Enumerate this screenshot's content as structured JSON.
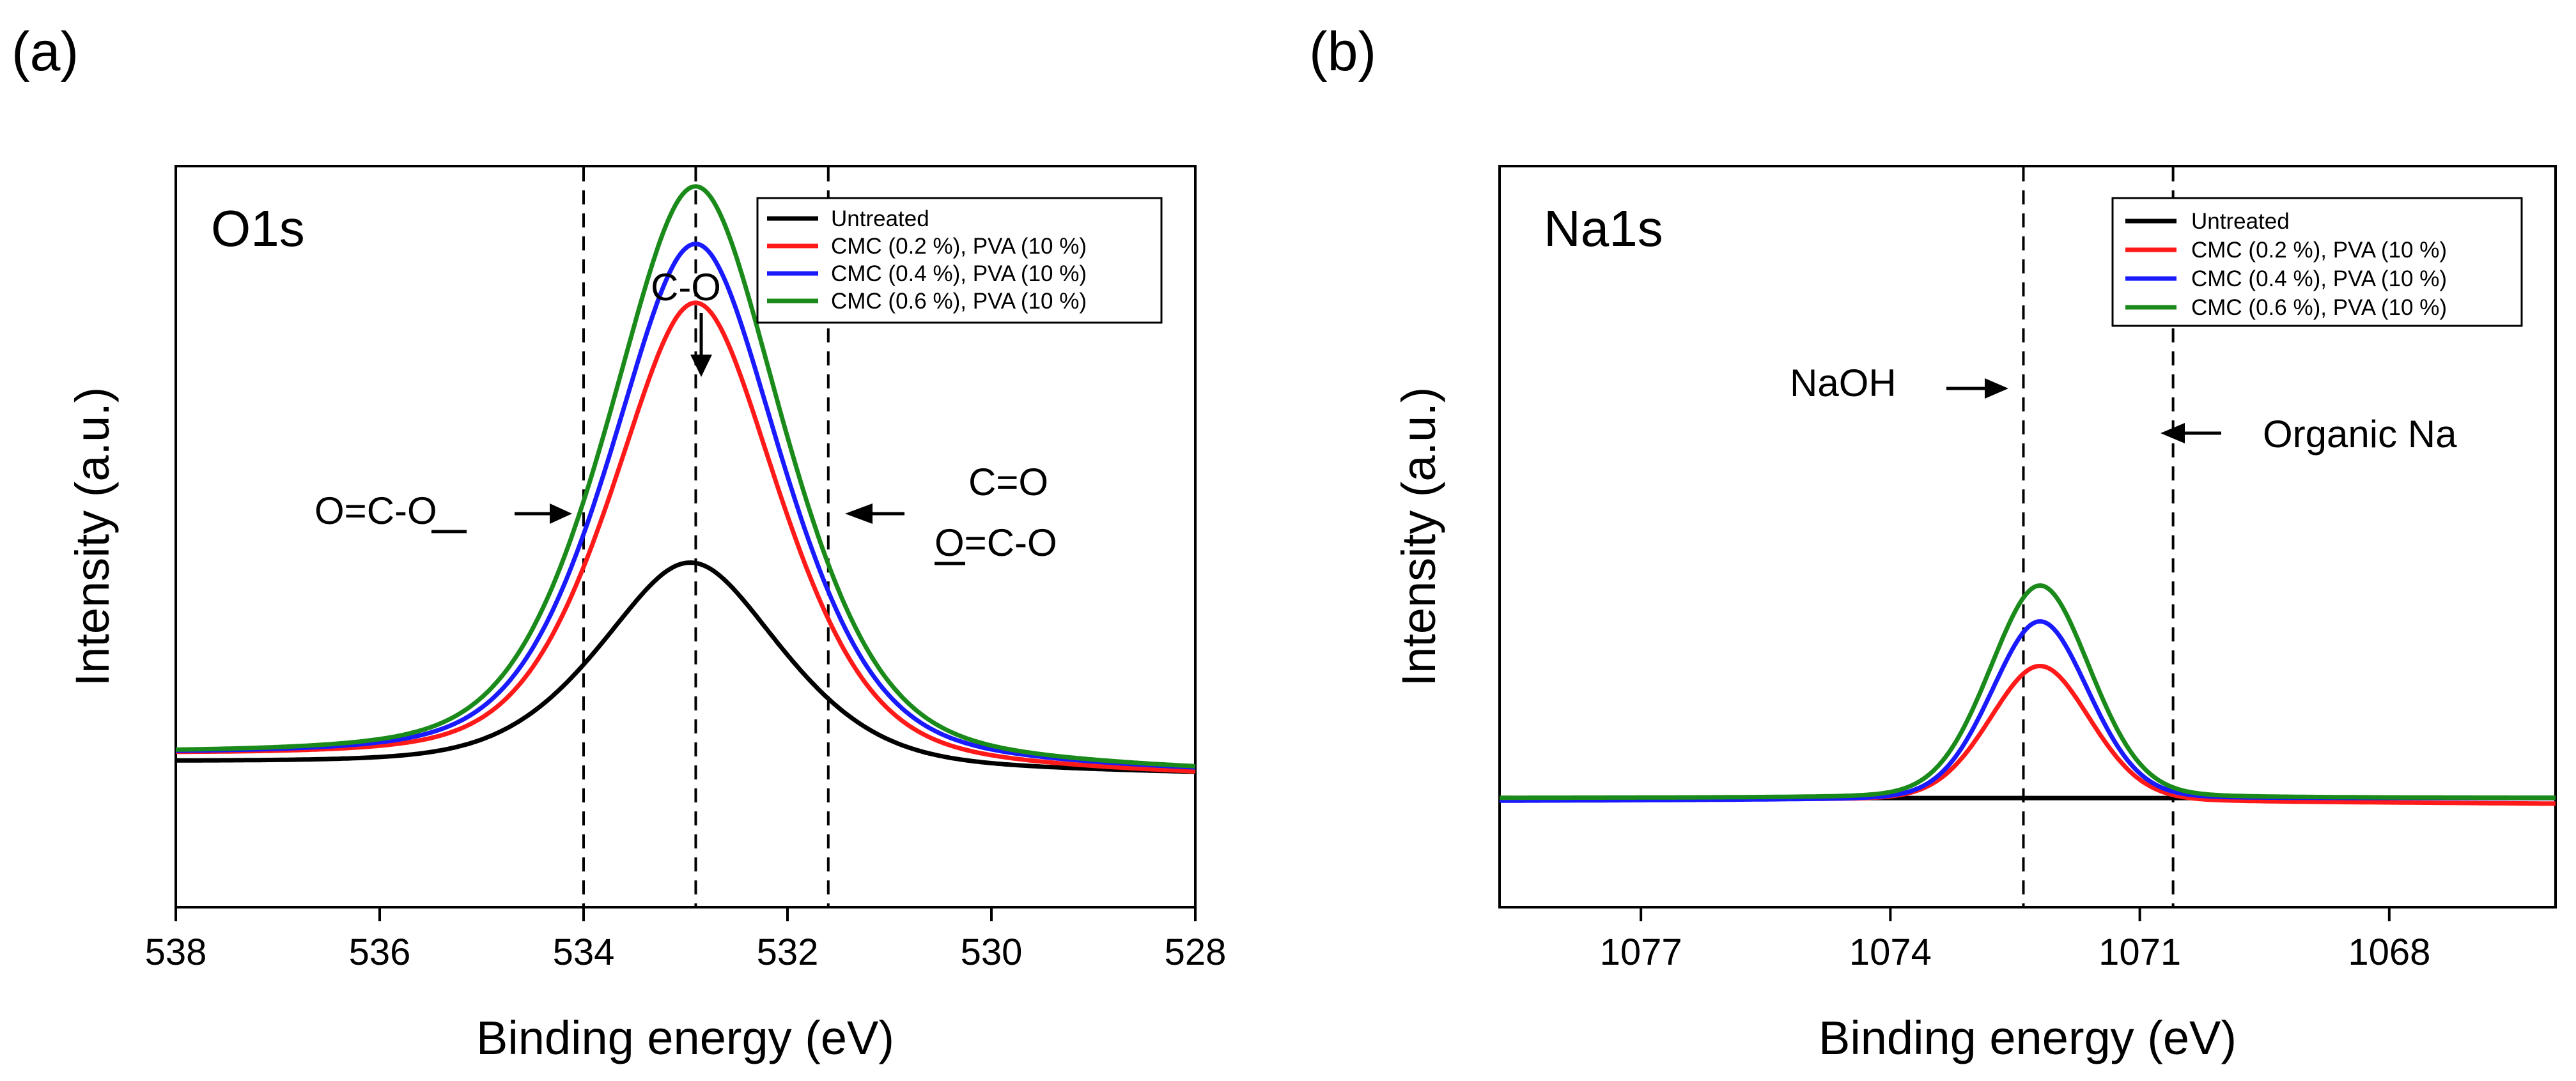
{
  "figure": {
    "panels": [
      {
        "panel_label": "(a)",
        "title": "O1s",
        "legend_title_hidden": false,
        "annotations": {
          "peak_label": "C-O",
          "left_label": "O=C-O",
          "right_label_1": "C=O",
          "right_label_2": "O=C-O"
        }
      },
      {
        "panel_label": "(b)",
        "title": "Na1s",
        "annotations": {
          "left_label": "NaOH",
          "right_label": "Organic Na"
        }
      }
    ]
  },
  "chart_data": [
    {
      "type": "line",
      "title": "O1s",
      "xlabel": "Binding energy (eV)",
      "ylabel": "Intensity (a.u.)",
      "xlim": [
        538,
        528
      ],
      "ylim": [
        -0.48,
        2.1
      ],
      "x_ticks": [
        538,
        536,
        534,
        532,
        530,
        528
      ],
      "x_tick_labels": [
        "538",
        "536",
        "534",
        "532",
        "530",
        "528"
      ],
      "vlines": [
        534.0,
        532.9,
        531.6
      ],
      "legend": {
        "position": "top-right",
        "entries": [
          "Untreated",
          "CMC (0.2 %), PVA (10 %)",
          "CMC (0.4 %), PVA (10 %)",
          "CMC (0.6 %), PVA (10 %)"
        ]
      },
      "series": [
        {
          "name": "Untreated",
          "color": "#000000",
          "peak_x": 532.95,
          "peak_y": 0.72,
          "width": 0.95,
          "baseline_left": 0.02,
          "baseline_right": -0.02
        },
        {
          "name": "CMC (0.2 %), PVA (10 %)",
          "color": "#ff1a1a",
          "peak_x": 532.9,
          "peak_y": 1.62,
          "width": 0.88,
          "baseline_left": 0.04,
          "baseline_right": -0.03
        },
        {
          "name": "CMC (0.4 %), PVA (10 %)",
          "color": "#1a1aff",
          "peak_x": 532.9,
          "peak_y": 1.82,
          "width": 0.9,
          "baseline_left": 0.04,
          "baseline_right": -0.02
        },
        {
          "name": "CMC (0.6 %), PVA (10 %)",
          "color": "#1a8a1a",
          "peak_x": 532.9,
          "peak_y": 2.02,
          "width": 0.92,
          "baseline_left": 0.04,
          "baseline_right": -0.02
        }
      ]
    },
    {
      "type": "line",
      "title": "Na1s",
      "xlabel": "Binding energy (eV)",
      "ylabel": "Intensity (a.u.)",
      "xlim": [
        1078.7,
        1066.0
      ],
      "ylim": [
        -0.38,
        2.2
      ],
      "x_ticks": [
        1077,
        1074,
        1071,
        1068
      ],
      "x_tick_labels": [
        "1077",
        "1074",
        "1071",
        "1068"
      ],
      "vlines": [
        1072.4,
        1070.6
      ],
      "legend": {
        "position": "top-right",
        "entries": [
          "Untreated",
          "CMC (0.2 %), PVA (10 %)",
          "CMC (0.4 %), PVA (10 %)",
          "CMC (0.6 %), PVA (10 %)"
        ]
      },
      "series": [
        {
          "name": "Untreated",
          "color": "#000000",
          "peak_x": 1072.2,
          "peak_y": 0.0,
          "width": 1.0,
          "baseline_left": 0.0,
          "baseline_right": 0.0
        },
        {
          "name": "CMC (0.2 %), PVA (10 %)",
          "color": "#ff1a1a",
          "peak_x": 1072.2,
          "peak_y": 0.47,
          "width": 0.62,
          "baseline_left": 0.0,
          "baseline_right": -0.02
        },
        {
          "name": "CMC (0.4 %), PVA (10 %)",
          "color": "#1a1aff",
          "peak_x": 1072.2,
          "peak_y": 0.62,
          "width": 0.6,
          "baseline_left": -0.01,
          "baseline_right": 0.0
        },
        {
          "name": "CMC (0.6 %), PVA (10 %)",
          "color": "#1a8a1a",
          "peak_x": 1072.2,
          "peak_y": 0.74,
          "width": 0.62,
          "baseline_left": 0.0,
          "baseline_right": 0.0
        }
      ]
    }
  ]
}
